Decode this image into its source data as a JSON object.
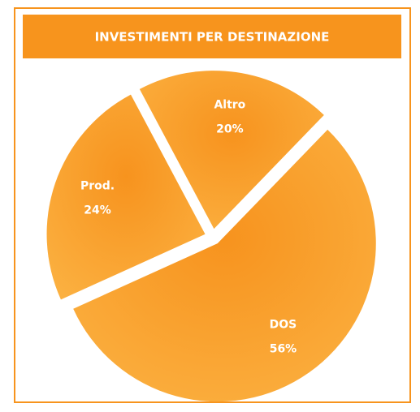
{
  "chart_data": {
    "type": "pie",
    "title": "INVESTIMENTI PER DESTINAZIONE",
    "categories": [
      "DOS",
      "Prod.",
      "Altro"
    ],
    "values": [
      56,
      24,
      20
    ],
    "value_labels": [
      "56%",
      "24%",
      "20%"
    ],
    "color": "#f99c1c"
  }
}
